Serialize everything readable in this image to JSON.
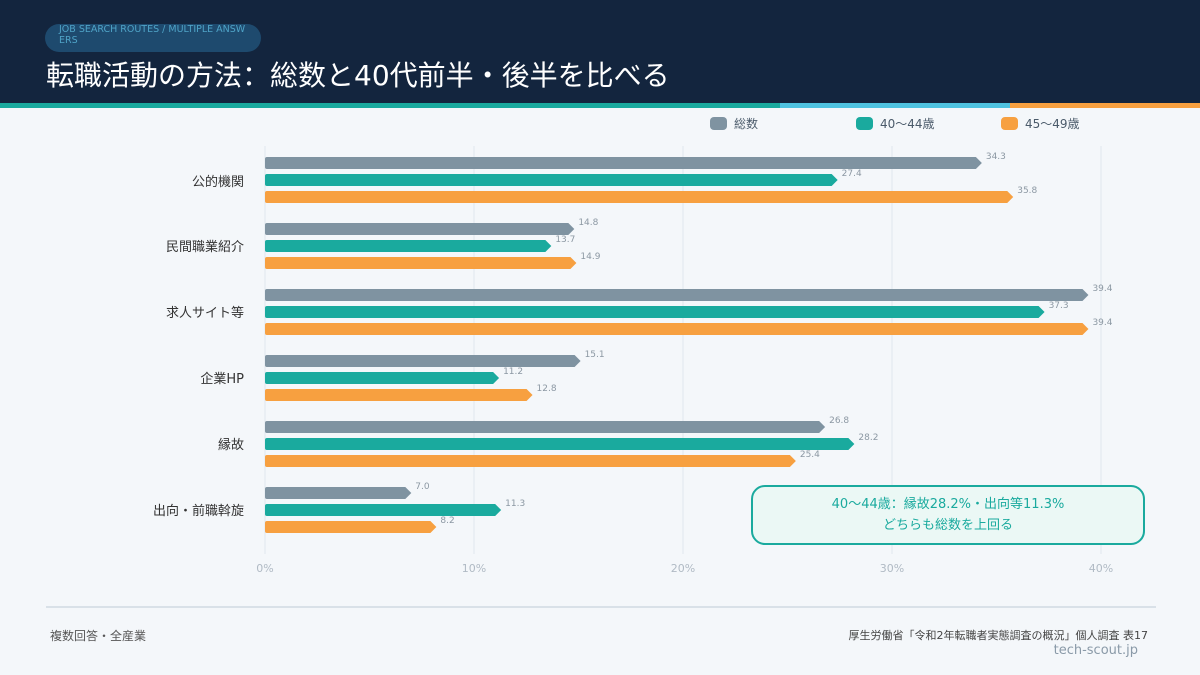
{
  "header": {
    "kicker": "JOB SEARCH ROUTES / MULTIPLE ANSWERS",
    "title": "転職活動の方法：総数と40代前半・後半を比べる"
  },
  "colors": {
    "header_bg": "#13253e",
    "series_total": "#7f93a1",
    "series_40_44": "#1aaa9e",
    "series_45_49": "#f7a040",
    "accent_teal": "#1aaa9e",
    "accent_sky": "#4fc3e0",
    "accent_orange": "#f7a040"
  },
  "chart_data": {
    "type": "bar",
    "orientation": "horizontal",
    "categories": [
      "公的機関",
      "民間職業紹介",
      "求人サイト等",
      "企業HP",
      "縁故",
      "出向・前職斡旋"
    ],
    "series": [
      {
        "name": "総数",
        "values": [
          34.3,
          14.8,
          39.4,
          15.1,
          26.8,
          7.0
        ]
      },
      {
        "name": "40～44歳",
        "values": [
          27.4,
          13.7,
          37.3,
          11.2,
          28.2,
          11.3
        ]
      },
      {
        "name": "45～49歳",
        "values": [
          35.8,
          14.9,
          39.4,
          12.8,
          25.4,
          8.2
        ]
      }
    ],
    "value_labels": [
      [
        "34.3",
        "14.8",
        "39.4",
        "15.1",
        "26.8",
        "7.0"
      ],
      [
        "27.4",
        "13.7",
        "37.3",
        "11.2",
        "28.2",
        "11.3"
      ],
      [
        "35.8",
        "14.9",
        "39.4",
        "12.8",
        "25.4",
        "8.2"
      ]
    ],
    "xlim": [
      0,
      40
    ],
    "x_ticks": [
      "0%",
      "10%",
      "20%",
      "30%",
      "40%"
    ],
    "grid": true,
    "legend_position": "top-right"
  },
  "annotation": {
    "line1": "40～44歳：縁故28.2%・出向等11.3%",
    "line2": "どちらも総数を上回る"
  },
  "footer": {
    "note": "複数回答・全産業",
    "source": "厚生労働省「令和2年転職者実態調査の概況」個人調査 表17",
    "site": "tech-scout.jp"
  }
}
